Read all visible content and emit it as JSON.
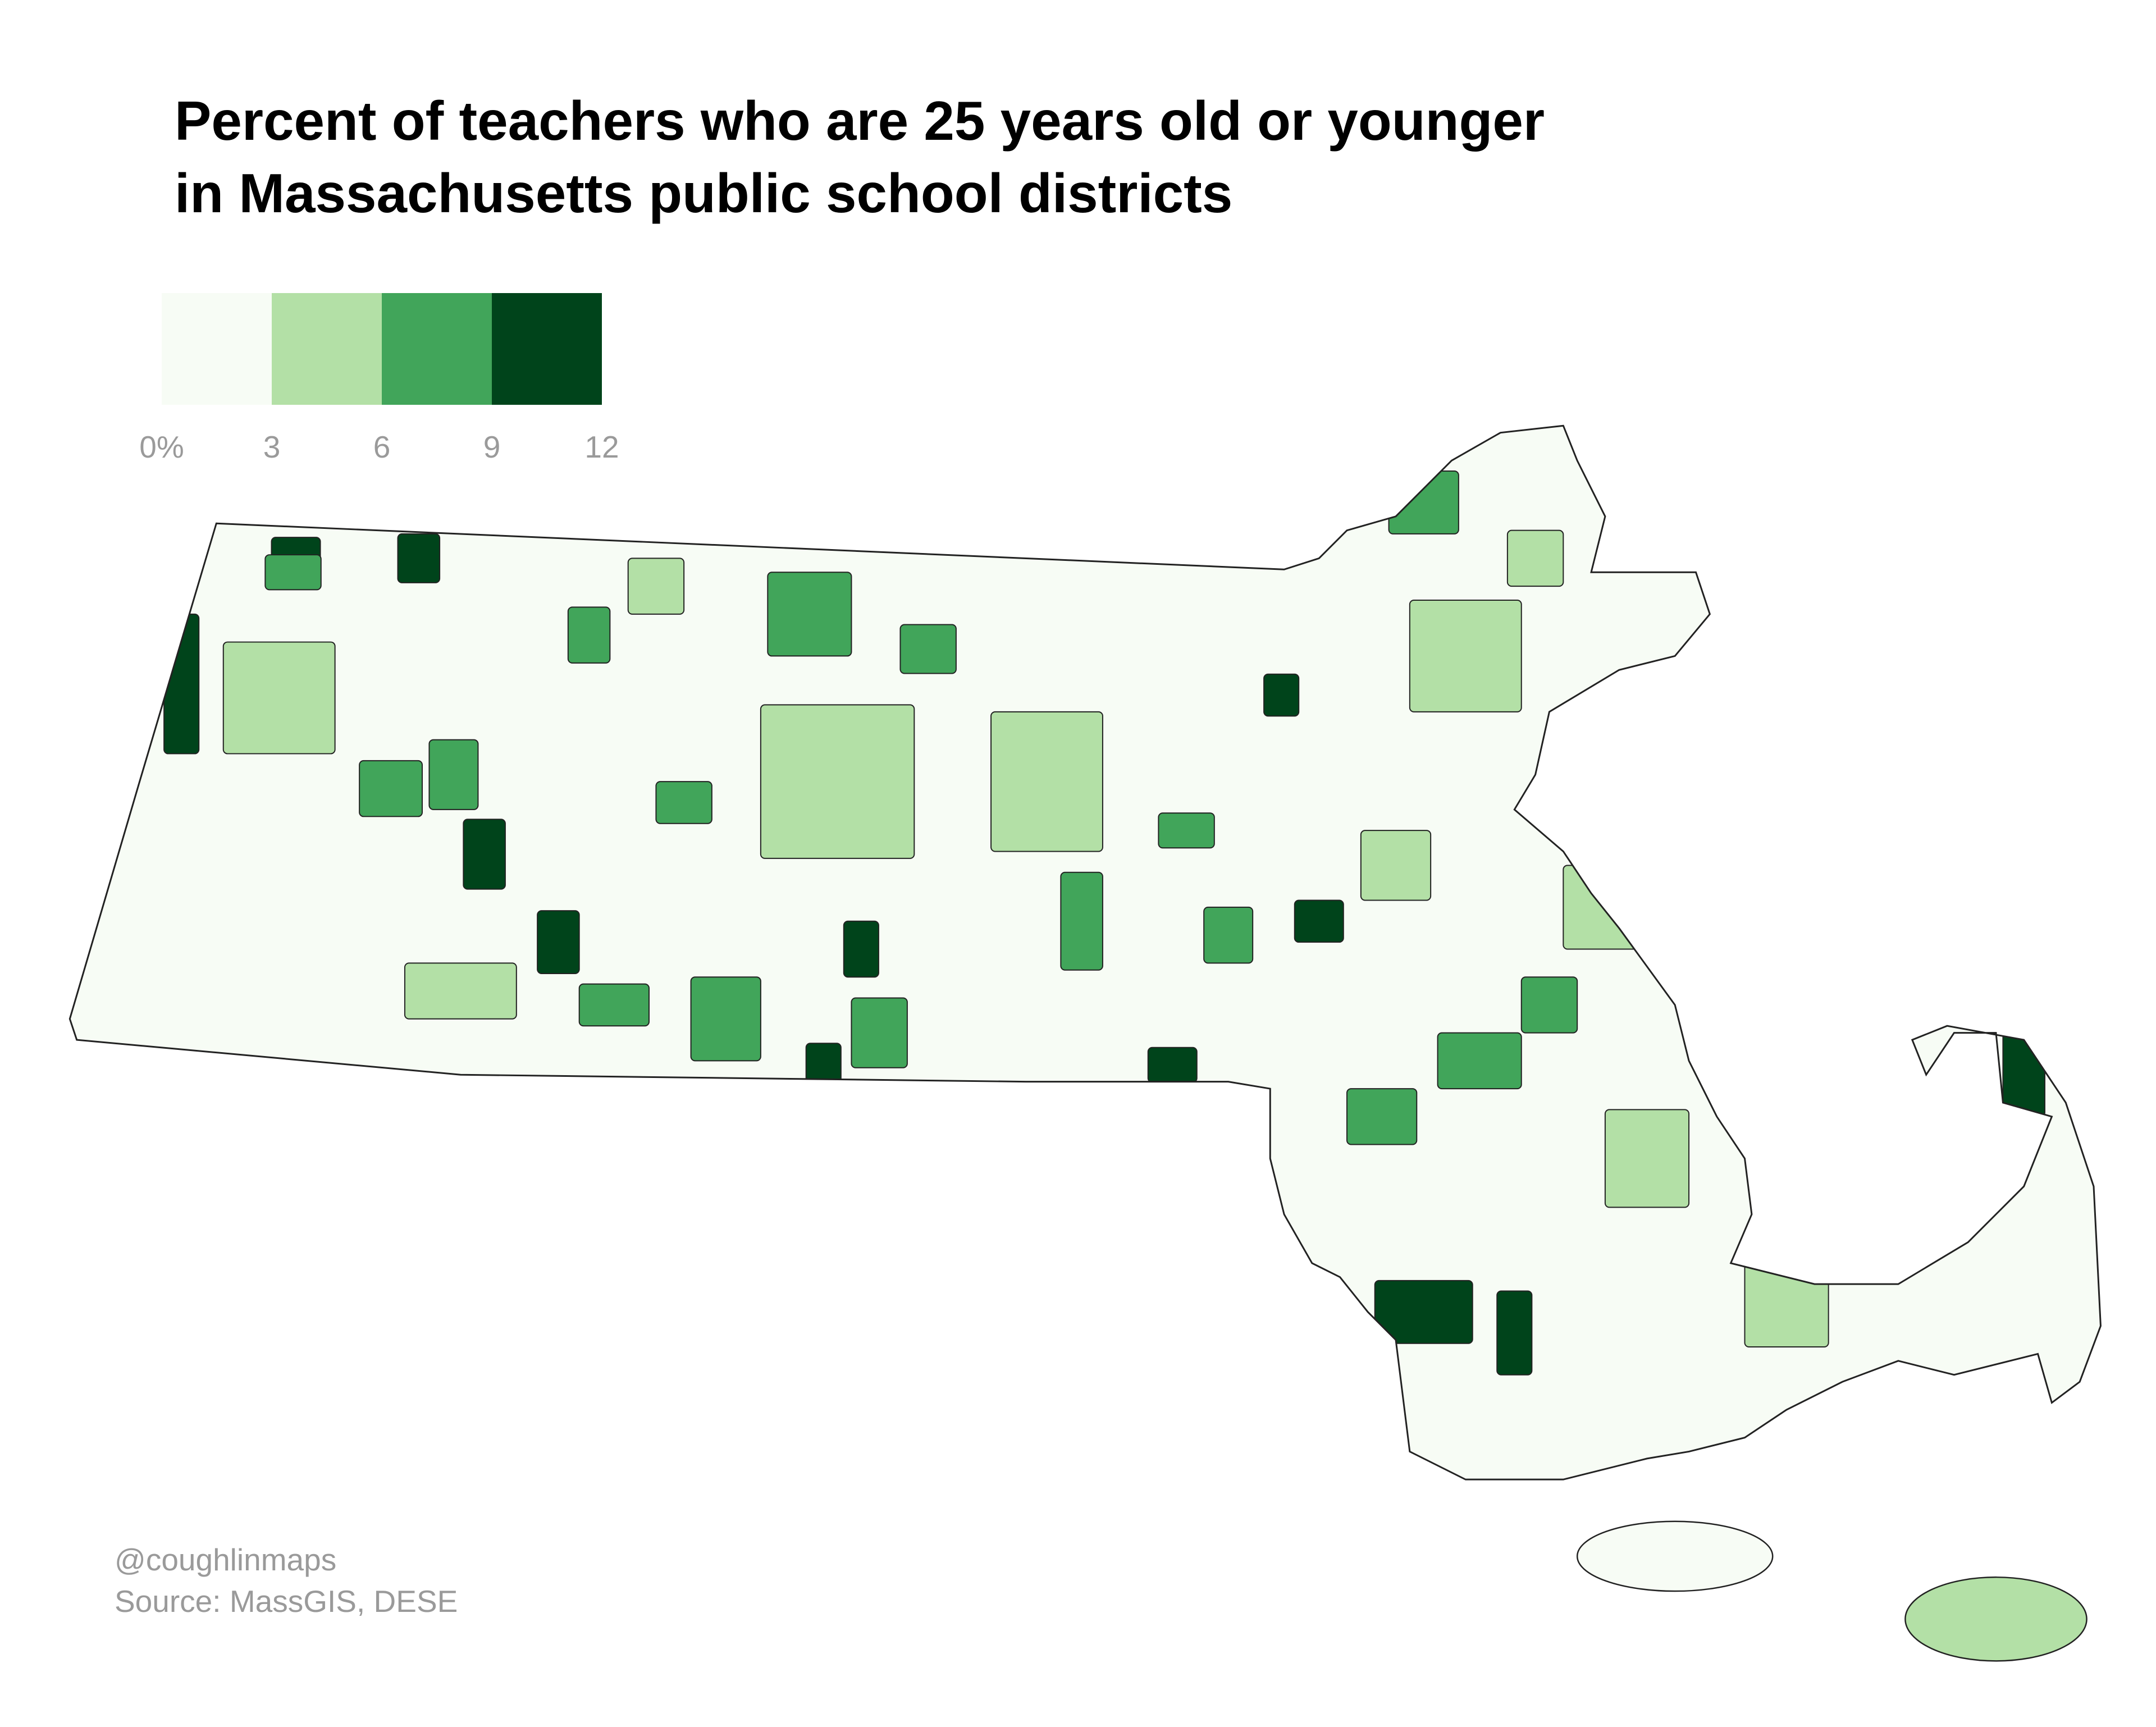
{
  "map": {
    "type": "choropleth",
    "title": [
      "Percent of teachers who are 25 years old or younger",
      "in Massachusetts public school districts"
    ],
    "legend": {
      "ticks": [
        {
          "value": 0,
          "label": "0%"
        },
        3,
        6,
        9,
        12
      ],
      "colors": [
        "#f7fcf5",
        "#b3e0a6",
        "#41a55a",
        "#00441b"
      ]
    },
    "districts": {
      "values": [
        10,
        10,
        10,
        10,
        10,
        10,
        10,
        10,
        10,
        10,
        10,
        10,
        10,
        7,
        7,
        7,
        7,
        7,
        7,
        7,
        7,
        7,
        7,
        7,
        7,
        7,
        7,
        7,
        7,
        7,
        4,
        4,
        4,
        4,
        4,
        4,
        4,
        4,
        4,
        4,
        4
      ]
    },
    "credit": "@coughlinmaps",
    "source": "Source: MassGIS, DESE"
  }
}
